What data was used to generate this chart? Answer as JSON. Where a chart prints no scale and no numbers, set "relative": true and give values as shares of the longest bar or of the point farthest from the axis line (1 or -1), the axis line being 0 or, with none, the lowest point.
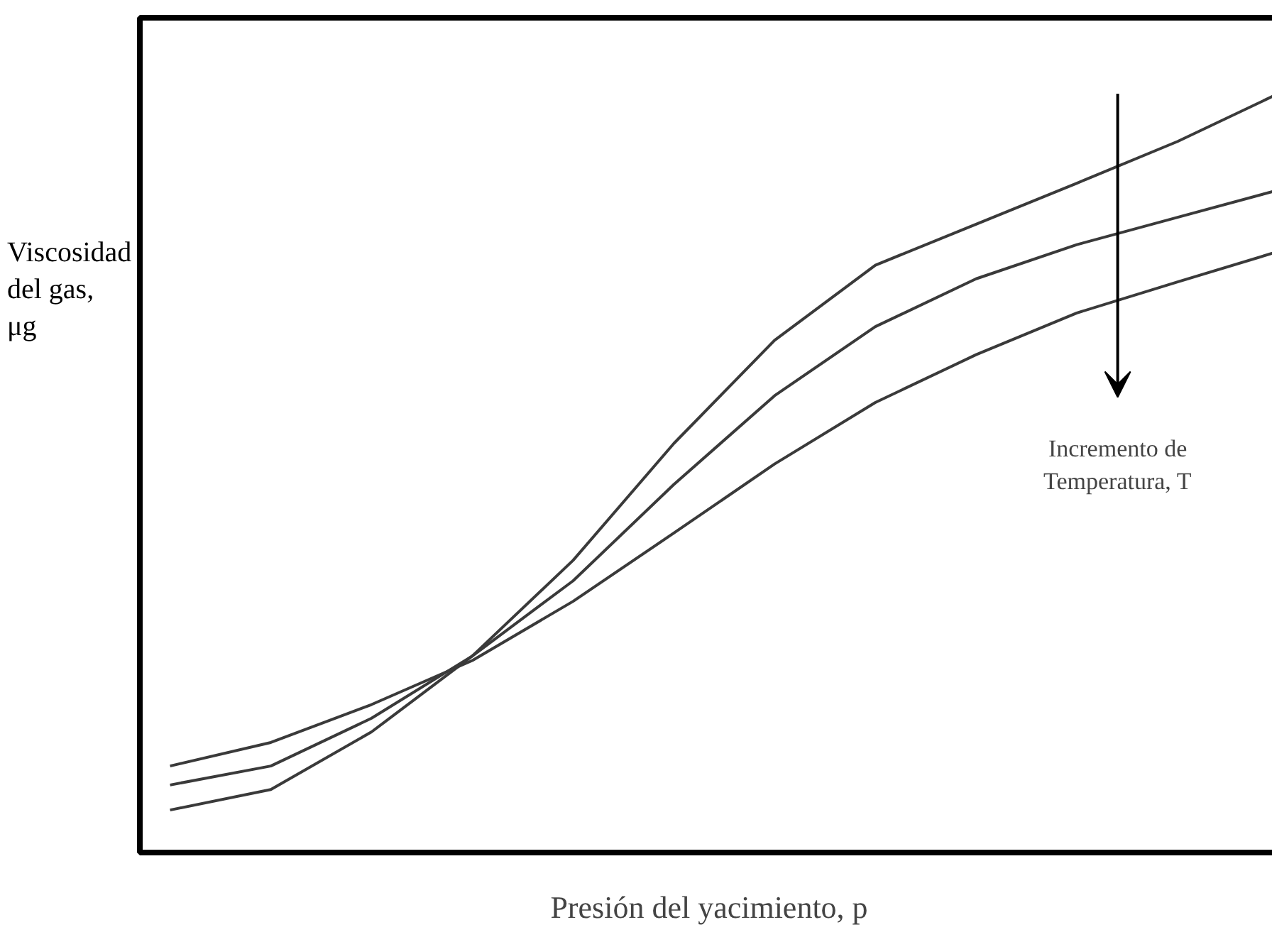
{
  "chart_data": {
    "type": "line",
    "relative": true,
    "xlabel": "Presión del yacimiento, p",
    "ylabel": "Viscosidad del gas, μg",
    "annotations": [
      "Incremento de Temperatura, T"
    ],
    "categories": [
      null,
      null,
      null,
      null,
      null,
      null,
      null,
      null,
      null,
      null,
      null,
      null
    ],
    "series": [
      {
        "color": "#3a3a3a",
        "values": [
          0.056,
          0.083,
          0.159,
          0.259,
          0.385,
          0.539,
          0.675,
          0.774,
          0.828,
          0.882,
          0.937,
          1.0
        ]
      },
      {
        "color": "#3a3a3a",
        "values": [
          0.089,
          0.114,
          0.177,
          0.259,
          0.358,
          0.485,
          0.602,
          0.693,
          0.756,
          0.801,
          0.837,
          0.873
        ]
      },
      {
        "color": "#3a3a3a",
        "values": [
          0.114,
          0.145,
          0.195,
          0.253,
          0.331,
          0.421,
          0.512,
          0.593,
          0.656,
          0.711,
          0.752,
          0.792
        ]
      }
    ],
    "grid": false,
    "marker": "none",
    "line_style": "solid"
  }
}
